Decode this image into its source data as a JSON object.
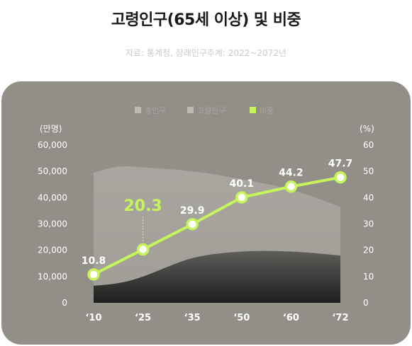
{
  "title": "고령인구(65세 이상) 및 비중",
  "subtitle": "자료: 통계청, 장래인구추계: 2022~2072년",
  "colors": {
    "panel": "#928f89",
    "line": "#c6f45a",
    "area_total": "#a7a49e",
    "area_elderly": "#3a3a3a"
  },
  "chart_data": {
    "type": "line",
    "categories": [
      "‘10",
      "‘25",
      "‘35",
      "‘50",
      "‘60",
      "‘72"
    ],
    "left_axis": {
      "label": "(만명)",
      "ticks": [
        "60,000",
        "50,000",
        "40,000",
        "30,000",
        "20,000",
        "10,000",
        "0"
      ],
      "ylim": [
        0,
        60000
      ]
    },
    "right_axis": {
      "label": "(%)",
      "ticks": [
        "60",
        "50",
        "40",
        "30",
        "20",
        "10",
        "0"
      ],
      "ylim": [
        0,
        60
      ]
    },
    "legend": {
      "position": "top-center",
      "items": [
        {
          "name": "총인구",
          "color": "#bdbab4"
        },
        {
          "name": "고령인구",
          "color": "#bdbab4"
        },
        {
          "name": "비중",
          "color": "#c6f45a"
        }
      ]
    },
    "series": [
      {
        "name": "비중",
        "kind": "line",
        "values": [
          10.8,
          20.3,
          29.9,
          40.1,
          44.2,
          47.7
        ],
        "labels": [
          "10.8",
          "20.3",
          "29.9",
          "40.1",
          "44.2",
          "47.7"
        ],
        "highlight_index": 1
      }
    ],
    "areas": [
      {
        "name": "총인구",
        "x": [
          0,
          0.5,
          1,
          2,
          3,
          4,
          5
        ],
        "values": [
          49500,
          51800,
          51500,
          50000,
          47000,
          43000,
          36500
        ]
      },
      {
        "name": "고령인구",
        "x": [
          0,
          0.5,
          1,
          2,
          3,
          4,
          5
        ],
        "values": [
          6500,
          7500,
          10000,
          17000,
          19500,
          19500,
          18000
        ]
      }
    ]
  }
}
